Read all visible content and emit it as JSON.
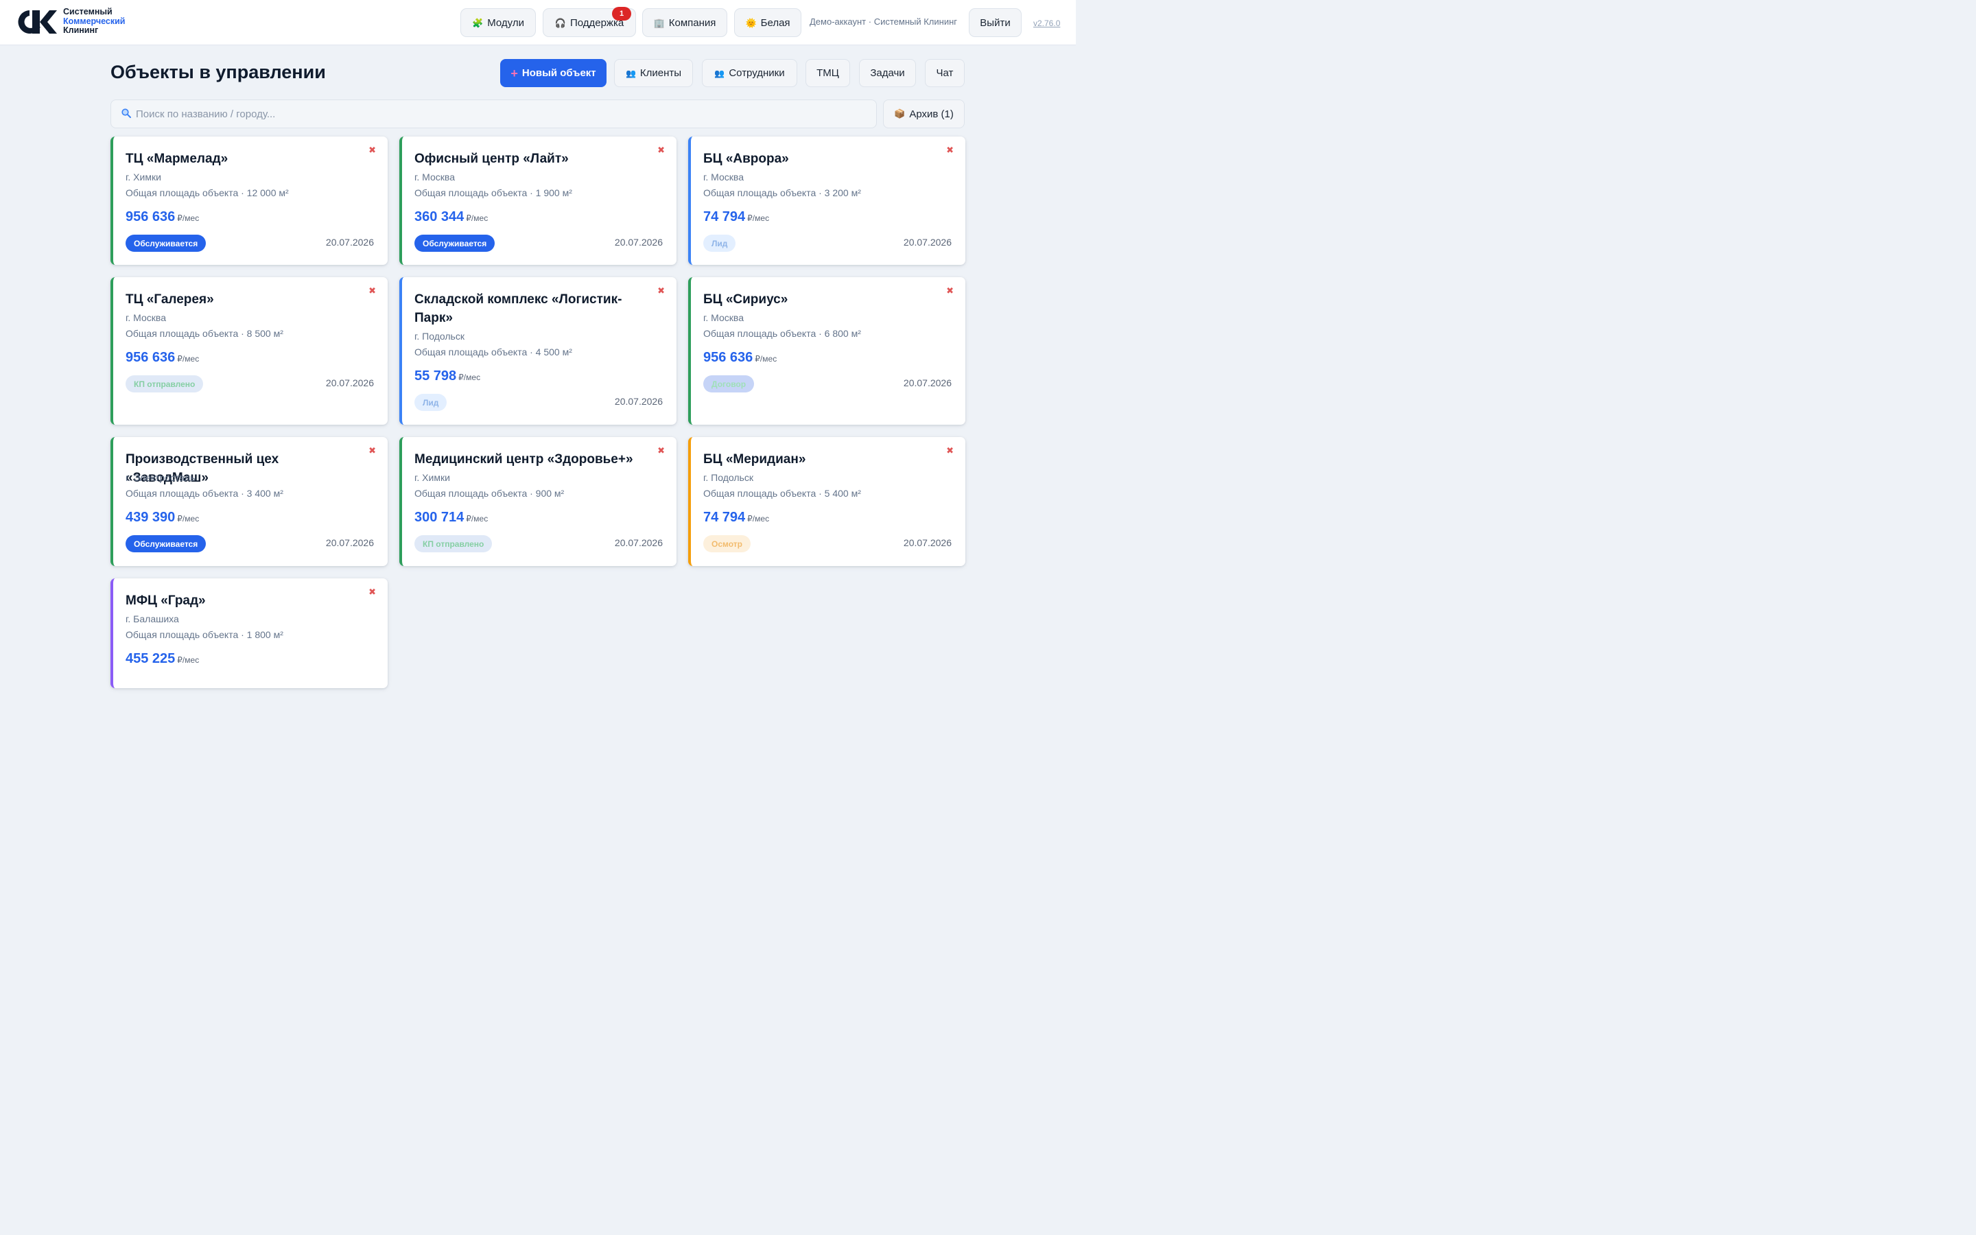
{
  "brand": {
    "line1": "Системный",
    "line2": "Коммерческий",
    "line3": "Клининг"
  },
  "header": {
    "modules_label": "Модули",
    "support_label": "Поддержка",
    "support_badge": "1",
    "company_label": "Компания",
    "theme_label": "Белая",
    "account_text": "Демо-аккаунт · Системный Клининг",
    "logout_label": "Выйти",
    "version": "v2.76.0",
    "icons": {
      "modules": "puzzle-icon",
      "support": "headphones-icon",
      "company": "building-icon",
      "theme": "sun-icon"
    }
  },
  "page": {
    "title": "Объекты в управлении",
    "new_object_label": "Новый объект",
    "clients_label": "Клиенты",
    "employees_label": "Сотрудники",
    "tmc_label": "ТМЦ",
    "tasks_label": "Задачи",
    "chat_label": "Чат"
  },
  "search": {
    "placeholder": "Поиск по названию / городу...",
    "value": ""
  },
  "archive_label": "Архив (1)",
  "colors": {
    "accent": "#2563eb",
    "green": "#2e9e5b",
    "blue": "#3b82f6",
    "orange": "#f59e0b",
    "purple": "#8b5cf6",
    "close": "#e05555"
  },
  "cards": [
    {
      "name": "ТЦ «Мармелад»",
      "city": "г. Химки",
      "area": "Общая площадь объекта · 12 000 м²",
      "price": "956 636",
      "unit": "₽/мес",
      "status": "Обслуживается",
      "status_type": "serviced",
      "date": "20.07.2026",
      "accent": "green"
    },
    {
      "name": "Офисный центр «Лайт»",
      "city": "г. Москва",
      "area": "Общая площадь объекта · 1 900 м²",
      "price": "360 344",
      "unit": "₽/мес",
      "status": "Обслуживается",
      "status_type": "serviced",
      "date": "20.07.2026",
      "accent": "green"
    },
    {
      "name": "БЦ «Аврора»",
      "city": "г. Москва",
      "area": "Общая площадь объекта · 3 200 м²",
      "price": "74 794",
      "unit": "₽/мес",
      "status": "Лид",
      "status_type": "lead",
      "date": "20.07.2026",
      "accent": "blue"
    },
    {
      "name": "ТЦ «Галерея»",
      "city": "г. Москва",
      "area": "Общая площадь объекта · 8 500 м²",
      "price": "956 636",
      "unit": "₽/мес",
      "status": "КП отправлено",
      "status_type": "offer",
      "date": "20.07.2026",
      "accent": "green"
    },
    {
      "name": "Складской комплекс «Логистик-Парк»",
      "city": "г. Подольск",
      "area": "Общая площадь объекта · 4 500 м²",
      "price": "55 798",
      "unit": "₽/мес",
      "status": "Лид",
      "status_type": "lead",
      "date": "20.07.2026",
      "accent": "blue"
    },
    {
      "name": "БЦ «Сириус»",
      "city": "г. Москва",
      "area": "Общая площадь объекта · 6 800 м²",
      "price": "956 636",
      "unit": "₽/мес",
      "status": "Договор",
      "status_type": "contract",
      "date": "20.07.2026",
      "accent": "green"
    },
    {
      "name": "Производственный цех «ЗаводМаш»",
      "city": "г. Электросталь",
      "area": "Общая площадь объекта · 3 400 м²",
      "price": "439 390",
      "unit": "₽/мес",
      "status": "Обслуживается",
      "status_type": "serviced",
      "date": "20.07.2026",
      "accent": "green"
    },
    {
      "name": "Медицинский центр «Здоровье+»",
      "city": "г. Химки",
      "area": "Общая площадь объекта · 900 м²",
      "price": "300 714",
      "unit": "₽/мес",
      "status": "КП отправлено",
      "status_type": "offer",
      "date": "20.07.2026",
      "accent": "green"
    },
    {
      "name": "БЦ «Меридиан»",
      "city": "г. Подольск",
      "area": "Общая площадь объекта · 5 400 м²",
      "price": "74 794",
      "unit": "₽/мес",
      "status": "Осмотр",
      "status_type": "inspection",
      "date": "20.07.2026",
      "accent": "orange"
    },
    {
      "name": "МФЦ «Град»",
      "city": "г. Балашиха",
      "area": "Общая площадь объекта · 1 800 м²",
      "price": "455 225",
      "unit": "₽/мес",
      "status": "",
      "status_type": "",
      "date": "",
      "accent": "purple"
    }
  ]
}
